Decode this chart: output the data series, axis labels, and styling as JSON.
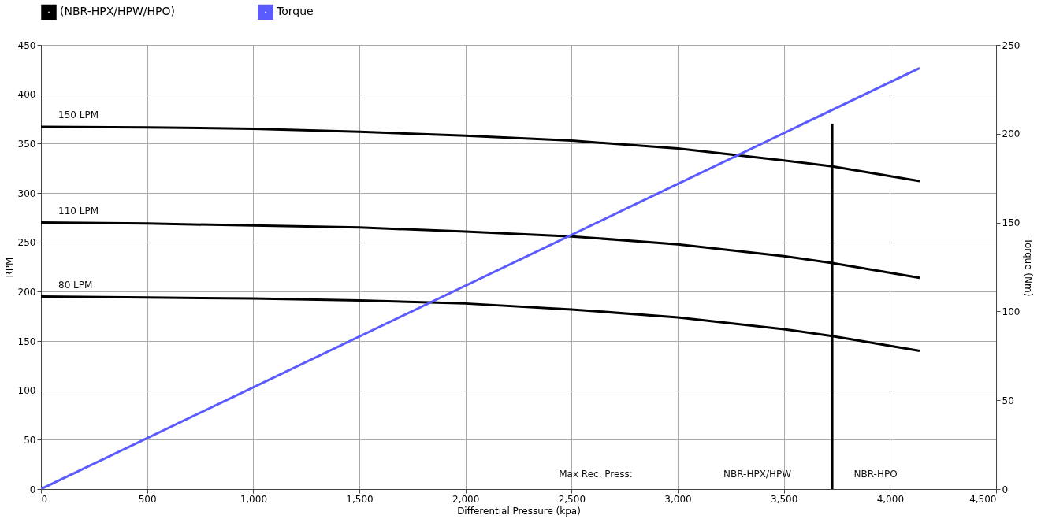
{
  "chart_data": {
    "type": "line",
    "xlabel": "Differential Pressure (kpa)",
    "ylabel": "RPM",
    "y2label": "Torque (Nm)",
    "series": [
      {
        "name": "(NBR-HPX/HPW/HPO)",
        "color": "#000000",
        "x": [
          0,
          500,
          1000,
          1500,
          2000,
          2500,
          3000,
          3500,
          3728,
          4140
        ],
        "values": [
          367,
          366.5,
          365,
          362,
          358,
          353,
          345,
          333,
          327,
          312
        ]
      },
      {
        "color": "#000000",
        "x": [
          0,
          500,
          1000,
          1500,
          2000,
          2500,
          3000,
          3500,
          3728,
          4140
        ],
        "values": [
          270,
          269,
          267,
          265,
          261,
          256,
          248,
          236,
          229,
          214
        ]
      },
      {
        "color": "#000000",
        "x": [
          0,
          500,
          1000,
          1500,
          2000,
          2500,
          3000,
          3500,
          3728,
          4140
        ],
        "values": [
          195,
          194,
          193,
          191,
          188,
          182,
          174,
          162,
          155,
          140
        ]
      },
      {
        "color": "#000000",
        "x": [
          3728,
          3728
        ],
        "values": [
          0,
          370
        ]
      },
      {
        "name": "Torque",
        "color": "#5b5bff",
        "axis": "y2",
        "x": [
          0,
          4140
        ],
        "values": [
          0,
          237
        ]
      }
    ],
    "xlim": [
      0,
      4500
    ],
    "xticks": [
      0,
      500,
      {
        "value": 1000,
        "label": "1,000"
      },
      {
        "value": 1500,
        "label": "1,500"
      },
      {
        "value": 2000,
        "label": "2,000"
      },
      {
        "value": 2500,
        "label": "2,500"
      },
      {
        "value": 3000,
        "label": "3,000"
      },
      {
        "value": 3500,
        "label": "3,500"
      },
      {
        "value": 4000,
        "label": "4,000"
      },
      {
        "value": 4500,
        "label": "4,500"
      }
    ],
    "ylim": [
      0,
      450
    ],
    "yticks": [
      0,
      50,
      100,
      150,
      200,
      250,
      300,
      350,
      400,
      450
    ],
    "y2lim": [
      0,
      250
    ],
    "y2ticks": [
      0,
      50,
      100,
      150,
      200,
      250
    ],
    "annotations": [
      "150 LPM",
      "110 LPM",
      "80 LPM",
      "Max Rec. Press:",
      "NBR-HPX/HPW",
      "NBR-HPO"
    ],
    "grid": true,
    "legend": "top left",
    "marker": "none",
    "line_style": "solid"
  }
}
